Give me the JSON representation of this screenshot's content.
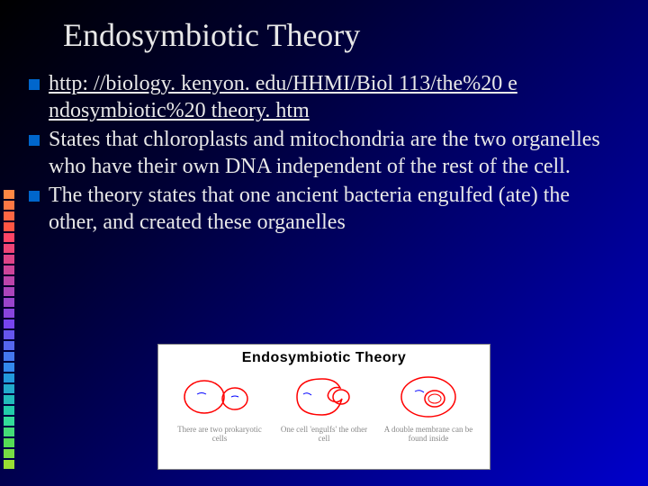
{
  "title": "Endosymbiotic Theory",
  "bullets": {
    "b0_link": "http: //biology. kenyon. edu/HHMI/Biol 113/the%20 e ndosymbiotic%20 theory. htm",
    "b1": "States that chloroplasts and mitochondria are the two organelles who have their own DNA independent of the rest of the cell.",
    "b2": "The theory states that one ancient bacteria engulfed (ate) the other, and created these organelles"
  },
  "bullet_marker_color": "#0066cc",
  "decoration_colors": [
    "#ff8844",
    "#ff7744",
    "#ff6644",
    "#ff5544",
    "#ff4466",
    "#ee4477",
    "#dd4488",
    "#cc4499",
    "#bb44aa",
    "#aa44bb",
    "#9944cc",
    "#8844dd",
    "#7744ee",
    "#6655ee",
    "#5566ee",
    "#4477ee",
    "#3388ee",
    "#2299dd",
    "#22aacc",
    "#22bbbb",
    "#22ccaa",
    "#33dd99",
    "#44dd77",
    "#55dd55",
    "#77dd44",
    "#99dd33"
  ],
  "embedded": {
    "title": "Endosymbiotic Theory",
    "c0": "There are two prokaryotic cells",
    "c1": "One cell 'engulfs' the other cell",
    "c2": "A double membrane can be found inside",
    "stroke_outer": "#ff0000",
    "stroke_inner": "#0000ff",
    "background": "#ffffff"
  }
}
